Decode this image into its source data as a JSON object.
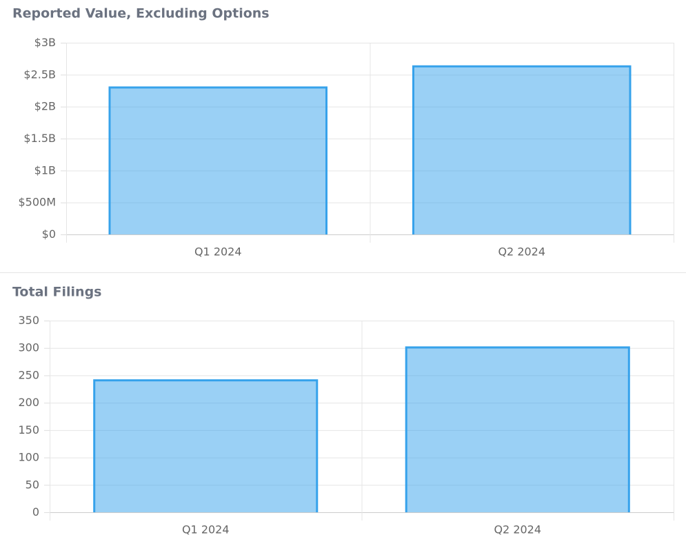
{
  "chart_data": [
    {
      "type": "bar",
      "title": "Reported Value, Excluding Options",
      "categories": [
        "Q1 2024",
        "Q2 2024"
      ],
      "values": [
        2300000000,
        2630000000
      ],
      "color": "#36a2eb",
      "ylim": [
        0,
        3000000000
      ],
      "yticks": [
        {
          "value": 0,
          "label": "$0"
        },
        {
          "value": 500000000,
          "label": "$500M"
        },
        {
          "value": 1000000000,
          "label": "$1B"
        },
        {
          "value": 1500000000,
          "label": "$1.5B"
        },
        {
          "value": 2000000000,
          "label": "$2B"
        },
        {
          "value": 2500000000,
          "label": "$2.5B"
        },
        {
          "value": 3000000000,
          "label": "$3B"
        }
      ],
      "grid": true
    },
    {
      "type": "bar",
      "title": "Total Filings",
      "categories": [
        "Q1 2024",
        "Q2 2024"
      ],
      "values": [
        241,
        301
      ],
      "color": "#36a2eb",
      "ylim": [
        0,
        350
      ],
      "yticks": [
        0,
        50,
        100,
        150,
        200,
        250,
        300,
        350
      ],
      "grid": true
    }
  ]
}
